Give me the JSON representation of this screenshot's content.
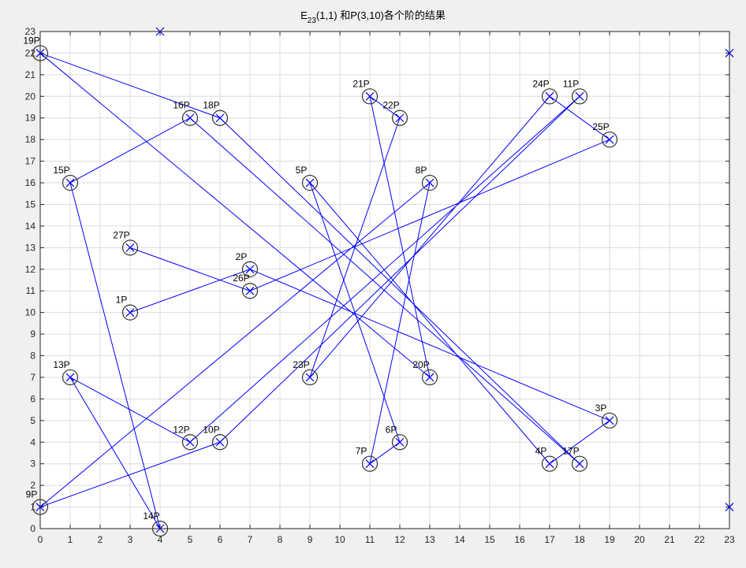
{
  "chart_data": {
    "type": "scatter",
    "title": {
      "prefix": "E",
      "subscript": "23",
      "suffix": "(1,1) 和P(3,10)各个阶的结果"
    },
    "xlim": [
      0,
      23
    ],
    "ylim": [
      0,
      23
    ],
    "x_ticks": [
      0,
      1,
      2,
      3,
      4,
      5,
      6,
      7,
      8,
      9,
      10,
      11,
      12,
      13,
      14,
      15,
      16,
      17,
      18,
      19,
      20,
      21,
      22,
      23
    ],
    "y_ticks": [
      0,
      1,
      2,
      3,
      4,
      5,
      6,
      7,
      8,
      9,
      10,
      11,
      12,
      13,
      14,
      15,
      16,
      17,
      18,
      19,
      20,
      21,
      22,
      23
    ],
    "grid": true,
    "colors": {
      "line": "#0000ff",
      "marker": "#0000ff",
      "circle": "#333333",
      "grid": "#dcdcdc",
      "axes_bg": "#ffffff",
      "figure_bg": "#f0f0f0"
    },
    "curve_points": [
      {
        "x": 0,
        "y": 1
      },
      {
        "x": 0,
        "y": 22
      },
      {
        "x": 1,
        "y": 7
      },
      {
        "x": 1,
        "y": 16
      },
      {
        "x": 3,
        "y": 10
      },
      {
        "x": 3,
        "y": 13
      },
      {
        "x": 4,
        "y": 0
      },
      {
        "x": 4,
        "y": 23
      },
      {
        "x": 5,
        "y": 4
      },
      {
        "x": 5,
        "y": 19
      },
      {
        "x": 6,
        "y": 4
      },
      {
        "x": 6,
        "y": 19
      },
      {
        "x": 7,
        "y": 11
      },
      {
        "x": 7,
        "y": 12
      },
      {
        "x": 9,
        "y": 7
      },
      {
        "x": 9,
        "y": 16
      },
      {
        "x": 11,
        "y": 3
      },
      {
        "x": 11,
        "y": 20
      },
      {
        "x": 12,
        "y": 4
      },
      {
        "x": 12,
        "y": 19
      },
      {
        "x": 13,
        "y": 7
      },
      {
        "x": 13,
        "y": 16
      },
      {
        "x": 17,
        "y": 3
      },
      {
        "x": 17,
        "y": 20
      },
      {
        "x": 18,
        "y": 3
      },
      {
        "x": 18,
        "y": 20
      },
      {
        "x": 19,
        "y": 5
      },
      {
        "x": 19,
        "y": 18
      },
      {
        "x": 23,
        "y": 1
      },
      {
        "x": 23,
        "y": 22
      }
    ],
    "multiples": [
      {
        "label": "1P",
        "x": 3,
        "y": 10
      },
      {
        "label": "2P",
        "x": 7,
        "y": 12
      },
      {
        "label": "3P",
        "x": 19,
        "y": 5
      },
      {
        "label": "4P",
        "x": 17,
        "y": 3
      },
      {
        "label": "5P",
        "x": 9,
        "y": 16
      },
      {
        "label": "6P",
        "x": 12,
        "y": 4
      },
      {
        "label": "7P",
        "x": 11,
        "y": 3
      },
      {
        "label": "8P",
        "x": 13,
        "y": 16
      },
      {
        "label": "9P",
        "x": 0,
        "y": 1
      },
      {
        "label": "10P",
        "x": 6,
        "y": 4
      },
      {
        "label": "11P",
        "x": 18,
        "y": 20
      },
      {
        "label": "12P",
        "x": 5,
        "y": 4
      },
      {
        "label": "13P",
        "x": 1,
        "y": 7
      },
      {
        "label": "14P",
        "x": 4,
        "y": 0
      },
      {
        "label": "15P",
        "x": 1,
        "y": 16
      },
      {
        "label": "16P",
        "x": 5,
        "y": 19
      },
      {
        "label": "17P",
        "x": 18,
        "y": 3
      },
      {
        "label": "18P",
        "x": 6,
        "y": 19
      },
      {
        "label": "19P",
        "x": 0,
        "y": 22
      },
      {
        "label": "20P",
        "x": 13,
        "y": 7
      },
      {
        "label": "21P",
        "x": 11,
        "y": 20
      },
      {
        "label": "22P",
        "x": 12,
        "y": 19
      },
      {
        "label": "23P",
        "x": 9,
        "y": 7
      },
      {
        "label": "24P",
        "x": 17,
        "y": 20
      },
      {
        "label": "25P",
        "x": 19,
        "y": 18
      },
      {
        "label": "26P",
        "x": 7,
        "y": 11
      },
      {
        "label": "27P",
        "x": 3,
        "y": 13
      }
    ]
  }
}
